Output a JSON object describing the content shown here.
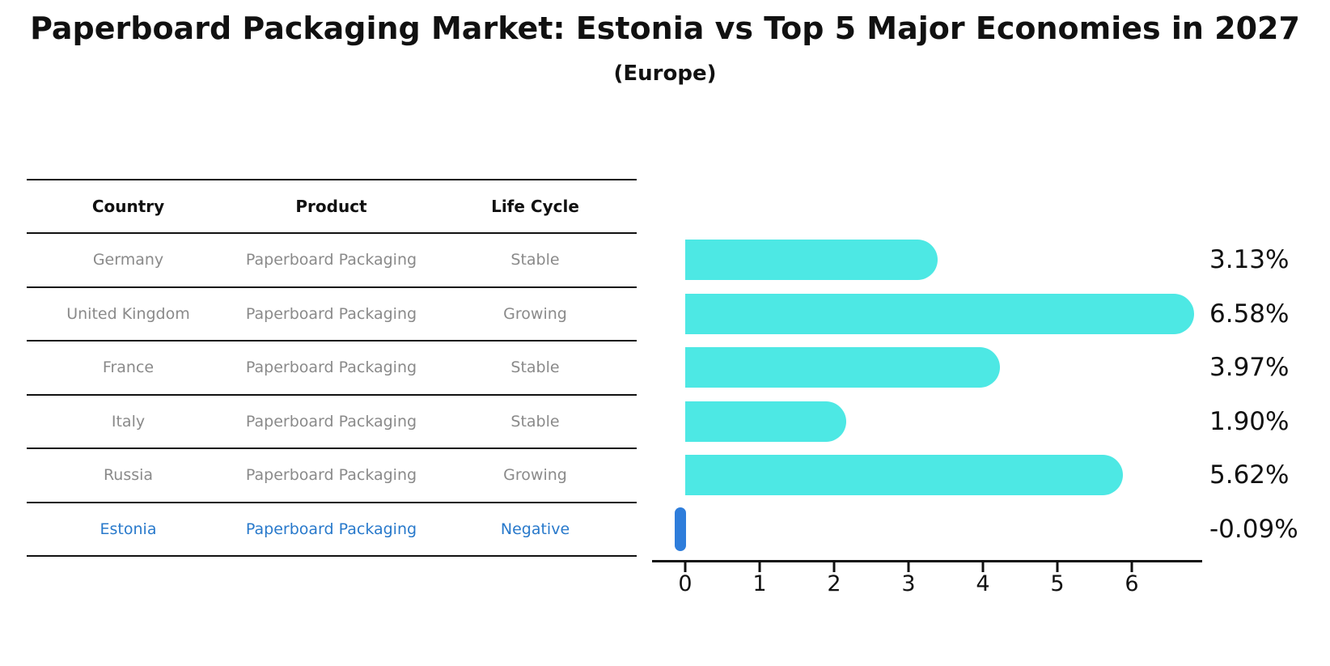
{
  "title": "Paperboard Packaging Market: Estonia vs Top 5 Major Economies in 2027",
  "subtitle": "(Europe)",
  "table": {
    "headers": [
      "Country",
      "Product",
      "Life Cycle"
    ],
    "rows": [
      {
        "country": "Germany",
        "product": "Paperboard Packaging",
        "life_cycle": "Stable",
        "highlight": false
      },
      {
        "country": "United Kingdom",
        "product": "Paperboard Packaging",
        "life_cycle": "Growing",
        "highlight": false
      },
      {
        "country": "France",
        "product": "Paperboard Packaging",
        "life_cycle": "Stable",
        "highlight": false
      },
      {
        "country": "Italy",
        "product": "Paperboard Packaging",
        "life_cycle": "Stable",
        "highlight": false
      },
      {
        "country": "Russia",
        "product": "Paperboard Packaging",
        "life_cycle": "Growing",
        "highlight": false
      },
      {
        "country": "Estonia",
        "product": "Paperboard Packaging",
        "life_cycle": "Negative",
        "highlight": true
      }
    ]
  },
  "chart_data": {
    "type": "bar",
    "orientation": "horizontal",
    "title": "Paperboard Packaging Market: Estonia vs Top 5 Major Economies in 2027",
    "subtitle": "(Europe)",
    "categories": [
      "Germany",
      "United Kingdom",
      "France",
      "Italy",
      "Russia",
      "Estonia"
    ],
    "values": [
      3.13,
      6.58,
      3.97,
      1.9,
      5.62,
      -0.09
    ],
    "value_labels": [
      "3.13%",
      "6.58%",
      "3.97%",
      "1.90%",
      "5.62%",
      "-0.09%"
    ],
    "x_ticks": [
      0,
      1,
      2,
      3,
      4,
      5,
      6
    ],
    "xlim": [
      -0.45,
      6.95
    ],
    "grid": false,
    "legend": false,
    "bar_color": "#4de8e4",
    "highlight_color": "#2e7ddb",
    "highlight_index": 5
  },
  "colors": {
    "text": "#111111",
    "table_row_text": "#8a8a8a",
    "highlight_text": "#2879cb",
    "bar": "#4de8e4",
    "highlight_bar": "#2e7ddb"
  }
}
